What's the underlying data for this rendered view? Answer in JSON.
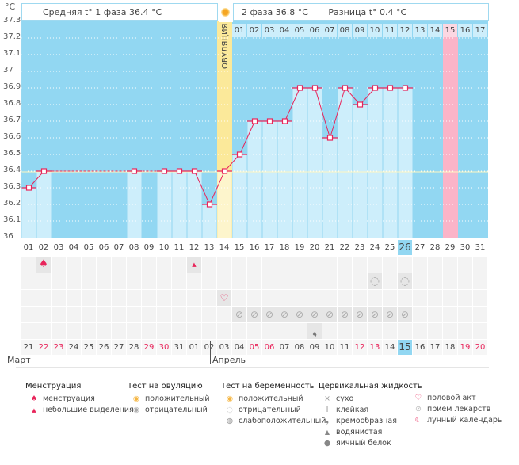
{
  "header": {
    "unit": "°C",
    "phase1": "Средняя t° 1 фаза 36.4 °C",
    "phase2": "2 фаза 36.8 °C",
    "diff": "Разница t° 0.4 °C",
    "ovulation_label": "ОВУЛЯЦИЯ"
  },
  "colors": {
    "plot_bg": "#92d7f2",
    "bar": "#cdeefb",
    "ovulation": "#fbe99a",
    "ovulation_bar": "#fdf5cc",
    "pink_day": "#fbb4c8",
    "line": "#e8245a",
    "highlight": "#92d7f2"
  },
  "chart_data": {
    "type": "line",
    "title": "",
    "ylabel": "°C",
    "xlabel": "",
    "ylim": [
      36.0,
      37.3
    ],
    "yticks": [
      "37.3",
      "37.2",
      "37.1",
      "37",
      "36.9",
      "36.8",
      "36.7",
      "36.6",
      "36.5",
      "36.4",
      "36.3",
      "36.2",
      "36.1",
      "36"
    ],
    "cycle_days": [
      "01",
      "02",
      "03",
      "04",
      "05",
      "06",
      "07",
      "08",
      "09",
      "10",
      "11",
      "12",
      "13",
      "14",
      "15",
      "16",
      "17",
      "18",
      "19",
      "20",
      "21",
      "22",
      "23",
      "24",
      "25",
      "26",
      "27",
      "28",
      "29",
      "30",
      "31"
    ],
    "temperatures": [
      36.3,
      36.4,
      null,
      null,
      null,
      null,
      null,
      36.4,
      null,
      36.4,
      36.4,
      36.4,
      36.2,
      36.4,
      36.5,
      36.7,
      36.7,
      36.7,
      36.9,
      36.9,
      36.6,
      36.9,
      36.8,
      36.9,
      36.9,
      36.9,
      null,
      null,
      null,
      null,
      null
    ],
    "ovulation_day": 14,
    "coverline": 36.4,
    "post_ovulation_days": [
      "01",
      "02",
      "03",
      "04",
      "05",
      "06",
      "07",
      "08",
      "09",
      "10",
      "11",
      "12",
      "13",
      "14",
      "15",
      "16",
      "17"
    ],
    "pink_day": 29,
    "today_day": 26
  },
  "calendar": {
    "dates": [
      "21",
      "22",
      "23",
      "24",
      "25",
      "26",
      "27",
      "28",
      "29",
      "30",
      "31",
      "01",
      "02",
      "03",
      "04",
      "05",
      "06",
      "07",
      "08",
      "09",
      "10",
      "11",
      "12",
      "13",
      "14",
      "15",
      "16",
      "17",
      "18",
      "19",
      "20"
    ],
    "weekend": [
      false,
      true,
      true,
      false,
      false,
      false,
      false,
      false,
      true,
      true,
      false,
      false,
      false,
      false,
      false,
      true,
      true,
      false,
      false,
      false,
      false,
      false,
      true,
      true,
      false,
      false,
      false,
      false,
      false,
      true,
      true
    ],
    "months": [
      "Март",
      "Апрель"
    ]
  },
  "markers": {
    "menstruation": {
      "2": "big",
      "12": "small"
    },
    "pregnancy_test": {
      "24": "negative",
      "26": "negative"
    },
    "intercourse": {
      "14": "heart"
    },
    "medication": {
      "15": "pill",
      "16": "pill",
      "17": "pill",
      "18": "pill",
      "19": "pill",
      "20": "pill",
      "21": "pill",
      "22": "pill",
      "23": "pill",
      "24": "pill",
      "25": "pill",
      "26": "pill"
    },
    "cervical": {
      "20": "creamy"
    }
  },
  "legend": {
    "menstruation": {
      "title": "Менструация",
      "items": [
        "менструация",
        "небольшие выделения"
      ]
    },
    "ovulation_test": {
      "title": "Тест на овуляцию",
      "items": [
        "положительный",
        "отрицательный"
      ]
    },
    "pregnancy_test": {
      "title": "Тест на беременность",
      "items": [
        "положительный",
        "отрицательный",
        "слабоположительный"
      ]
    },
    "cervical": {
      "title": "Цервикальная жидкость",
      "items": [
        "сухо",
        "клейкая",
        "кремообразная",
        "водянистая",
        "яичный белок"
      ]
    },
    "other": {
      "items": [
        "половой акт",
        "прием лекарств",
        "лунный календарь"
      ]
    }
  }
}
